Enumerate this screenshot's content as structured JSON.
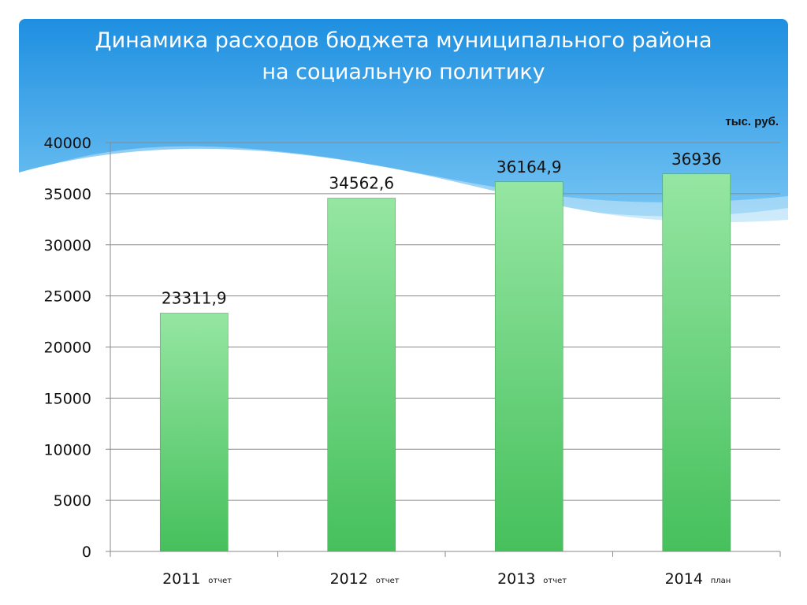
{
  "slide": {
    "title_line1": "Динамика расходов бюджета муниципального района",
    "title_line2": "на социальную политику",
    "unit": "тыс. руб.",
    "colors": {
      "header_top": "#1e8fe0",
      "header_bottom": "#7cc9f5",
      "bar_top": "#95e6a2",
      "bar_bottom": "#46c05c"
    }
  },
  "chart_data": {
    "type": "bar",
    "categories": [
      "2011",
      "2012",
      "2013",
      "2014"
    ],
    "category_notes": [
      "отчет",
      "отчет",
      "отчет",
      "план"
    ],
    "values": [
      23311.9,
      34562.6,
      36164.9,
      36936
    ],
    "data_labels": [
      "23311,9",
      "34562,6",
      "36164,9",
      "36936"
    ],
    "yticks": [
      0,
      5000,
      10000,
      15000,
      20000,
      25000,
      30000,
      35000,
      40000
    ],
    "ylim": [
      0,
      40000
    ],
    "grid": true,
    "legend": false
  }
}
